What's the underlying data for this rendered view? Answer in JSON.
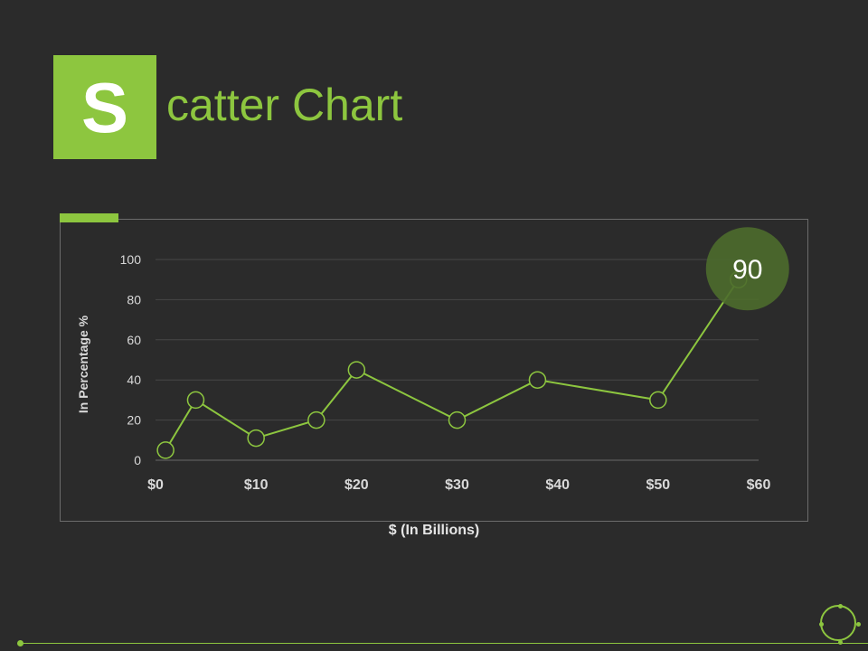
{
  "slide": {
    "title_letter": "S",
    "title_rest": "catter Chart",
    "accent_color": "#8dc63f",
    "highlight_color": "#4d6b2c",
    "background_color": "#2b2b2b",
    "decor": {
      "footer_icon": "circle-with-dots-icon",
      "footer_dot_icon": "dot-icon"
    }
  },
  "chart_data": {
    "type": "line",
    "title": "",
    "xlabel": "$ (In Billions)",
    "ylabel": "In Percentage %",
    "xlim": [
      0,
      60
    ],
    "ylim": [
      0,
      100
    ],
    "x_ticks": [
      "$0",
      "$10",
      "$20",
      "$30",
      "$40",
      "$50",
      "$60"
    ],
    "x_tick_values": [
      0,
      10,
      20,
      30,
      40,
      50,
      60
    ],
    "y_ticks": [
      "0",
      "20",
      "40",
      "60",
      "80",
      "100"
    ],
    "y_tick_values": [
      0,
      20,
      40,
      60,
      80,
      100
    ],
    "grid": true,
    "legend": "none",
    "series": [
      {
        "x": [
          1,
          4,
          10,
          16,
          20,
          30,
          38,
          50,
          58
        ],
        "y": [
          5,
          30,
          11,
          20,
          45,
          20,
          40,
          30,
          90
        ]
      }
    ],
    "callout": {
      "label": "90",
      "x": 58,
      "y": 90
    }
  }
}
